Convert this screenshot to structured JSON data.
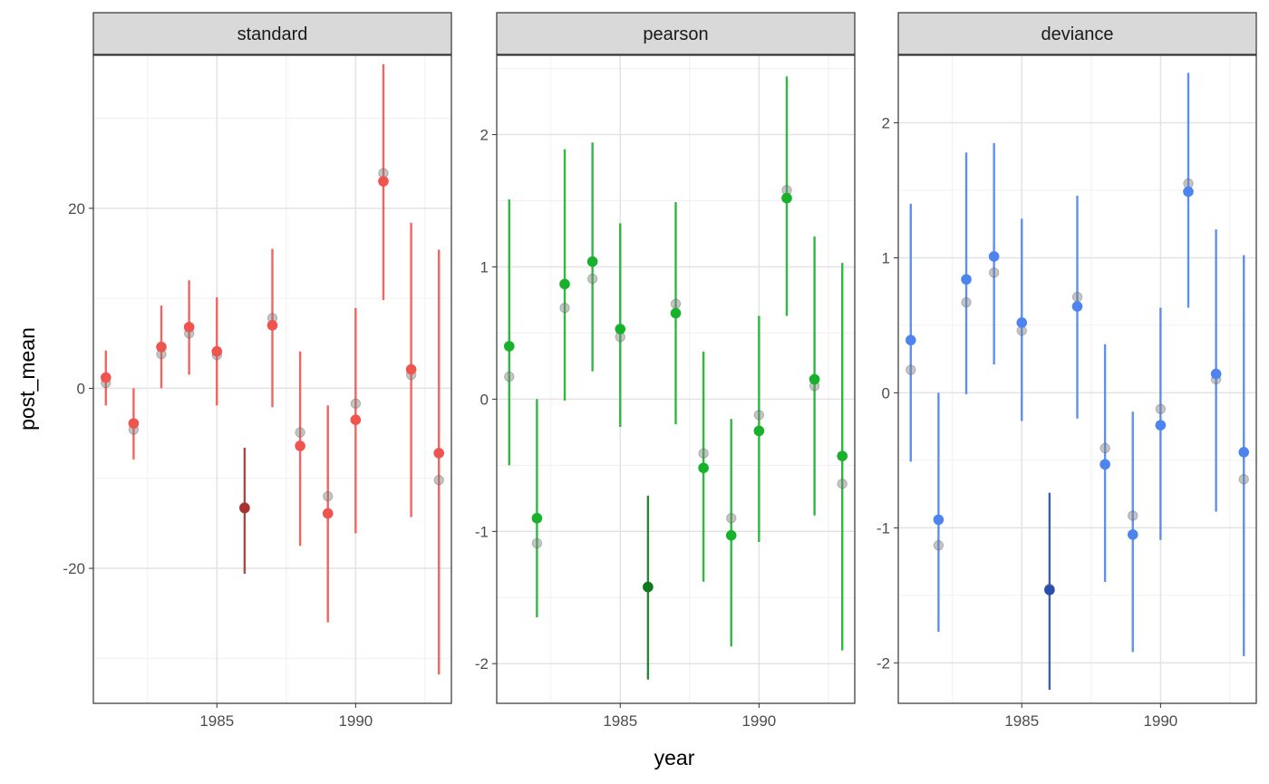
{
  "chart_data": {
    "type": "scatter",
    "xlabel": "year",
    "ylabel": "post_mean",
    "grid": true,
    "legend": "none",
    "reference_color": "#7f7f7f",
    "x": [
      1981,
      1982,
      1983,
      1984,
      1985,
      1986,
      1987,
      1988,
      1989,
      1990,
      1991,
      1992,
      1993
    ],
    "highlight_year": 1986,
    "panels": [
      {
        "name": "standard",
        "color": "#F0544F",
        "highlight_color": "#A8312D",
        "xlim": [
          1980.55,
          1993.45
        ],
        "ylim": [
          -35,
          37
        ],
        "xticks": [
          1985,
          1990
        ],
        "xtick_labels": [
          "1985",
          "1990"
        ],
        "yticks": [
          -20,
          0,
          20
        ],
        "ytick_labels": [
          "-20",
          "0",
          "20"
        ],
        "post_mean": [
          1.2,
          -3.9,
          4.6,
          6.8,
          4.1,
          -13.3,
          7.0,
          -6.4,
          -13.9,
          -3.5,
          23.0,
          2.1,
          -7.2
        ],
        "lower": [
          -1.9,
          -7.9,
          0.0,
          1.5,
          -1.9,
          -20.6,
          -2.1,
          -17.5,
          -26.0,
          -16.1,
          9.8,
          -14.3,
          -31.8
        ],
        "upper": [
          4.2,
          0.0,
          9.2,
          12.0,
          10.1,
          -6.6,
          15.5,
          4.1,
          -1.9,
          8.9,
          36.0,
          18.4,
          15.4
        ],
        "reference": [
          0.6,
          -4.6,
          3.8,
          6.1,
          3.7,
          -13.2,
          7.8,
          -4.9,
          -12.0,
          -1.7,
          23.9,
          1.5,
          -10.2
        ]
      },
      {
        "name": "pearson",
        "color": "#17B12B",
        "highlight_color": "#0F7A1D",
        "xlim": [
          1980.55,
          1993.45
        ],
        "ylim": [
          -2.3,
          2.6
        ],
        "xticks": [
          1985,
          1990
        ],
        "xtick_labels": [
          "1985",
          "1990"
        ],
        "yticks": [
          -2,
          -1,
          0,
          1,
          2
        ],
        "ytick_labels": [
          "-2",
          "-1",
          "0",
          "1",
          "2"
        ],
        "post_mean": [
          0.4,
          -0.9,
          0.87,
          1.04,
          0.53,
          -1.42,
          0.65,
          -0.52,
          -1.03,
          -0.24,
          1.52,
          0.15,
          -0.43
        ],
        "lower": [
          -0.5,
          -1.65,
          -0.01,
          0.21,
          -0.21,
          -2.12,
          -0.19,
          -1.38,
          -1.87,
          -1.08,
          0.63,
          -0.88,
          -1.9
        ],
        "upper": [
          1.51,
          0.0,
          1.89,
          1.94,
          1.33,
          -0.73,
          1.49,
          0.36,
          -0.15,
          0.63,
          2.44,
          1.23,
          1.03
        ],
        "reference": [
          0.17,
          -1.09,
          0.69,
          0.91,
          0.47,
          -1.42,
          0.72,
          -0.41,
          -0.9,
          -0.12,
          1.58,
          0.1,
          -0.64
        ]
      },
      {
        "name": "deviance",
        "color": "#4D84F0",
        "highlight_color": "#2A4FA8",
        "xlim": [
          1980.55,
          1993.45
        ],
        "ylim": [
          -2.3,
          2.5
        ],
        "xticks": [
          1985,
          1990
        ],
        "xtick_labels": [
          "1985",
          "1990"
        ],
        "yticks": [
          -2,
          -1,
          0,
          1,
          2
        ],
        "ytick_labels": [
          "-2",
          "-1",
          "0",
          "1",
          "2"
        ],
        "post_mean": [
          0.39,
          -0.94,
          0.84,
          1.01,
          0.52,
          -1.46,
          0.64,
          -0.53,
          -1.05,
          -0.24,
          1.49,
          0.14,
          -0.44
        ],
        "lower": [
          -0.51,
          -1.77,
          -0.01,
          0.21,
          -0.21,
          -2.2,
          -0.19,
          -1.4,
          -1.92,
          -1.09,
          0.63,
          -0.88,
          -1.95
        ],
        "upper": [
          1.4,
          0.0,
          1.78,
          1.85,
          1.29,
          -0.74,
          1.46,
          0.36,
          -0.14,
          0.63,
          2.37,
          1.21,
          1.02
        ],
        "reference": [
          0.17,
          -1.13,
          0.67,
          0.89,
          0.46,
          -1.45,
          0.71,
          -0.41,
          -0.91,
          -0.12,
          1.55,
          0.1,
          -0.64
        ]
      }
    ]
  }
}
